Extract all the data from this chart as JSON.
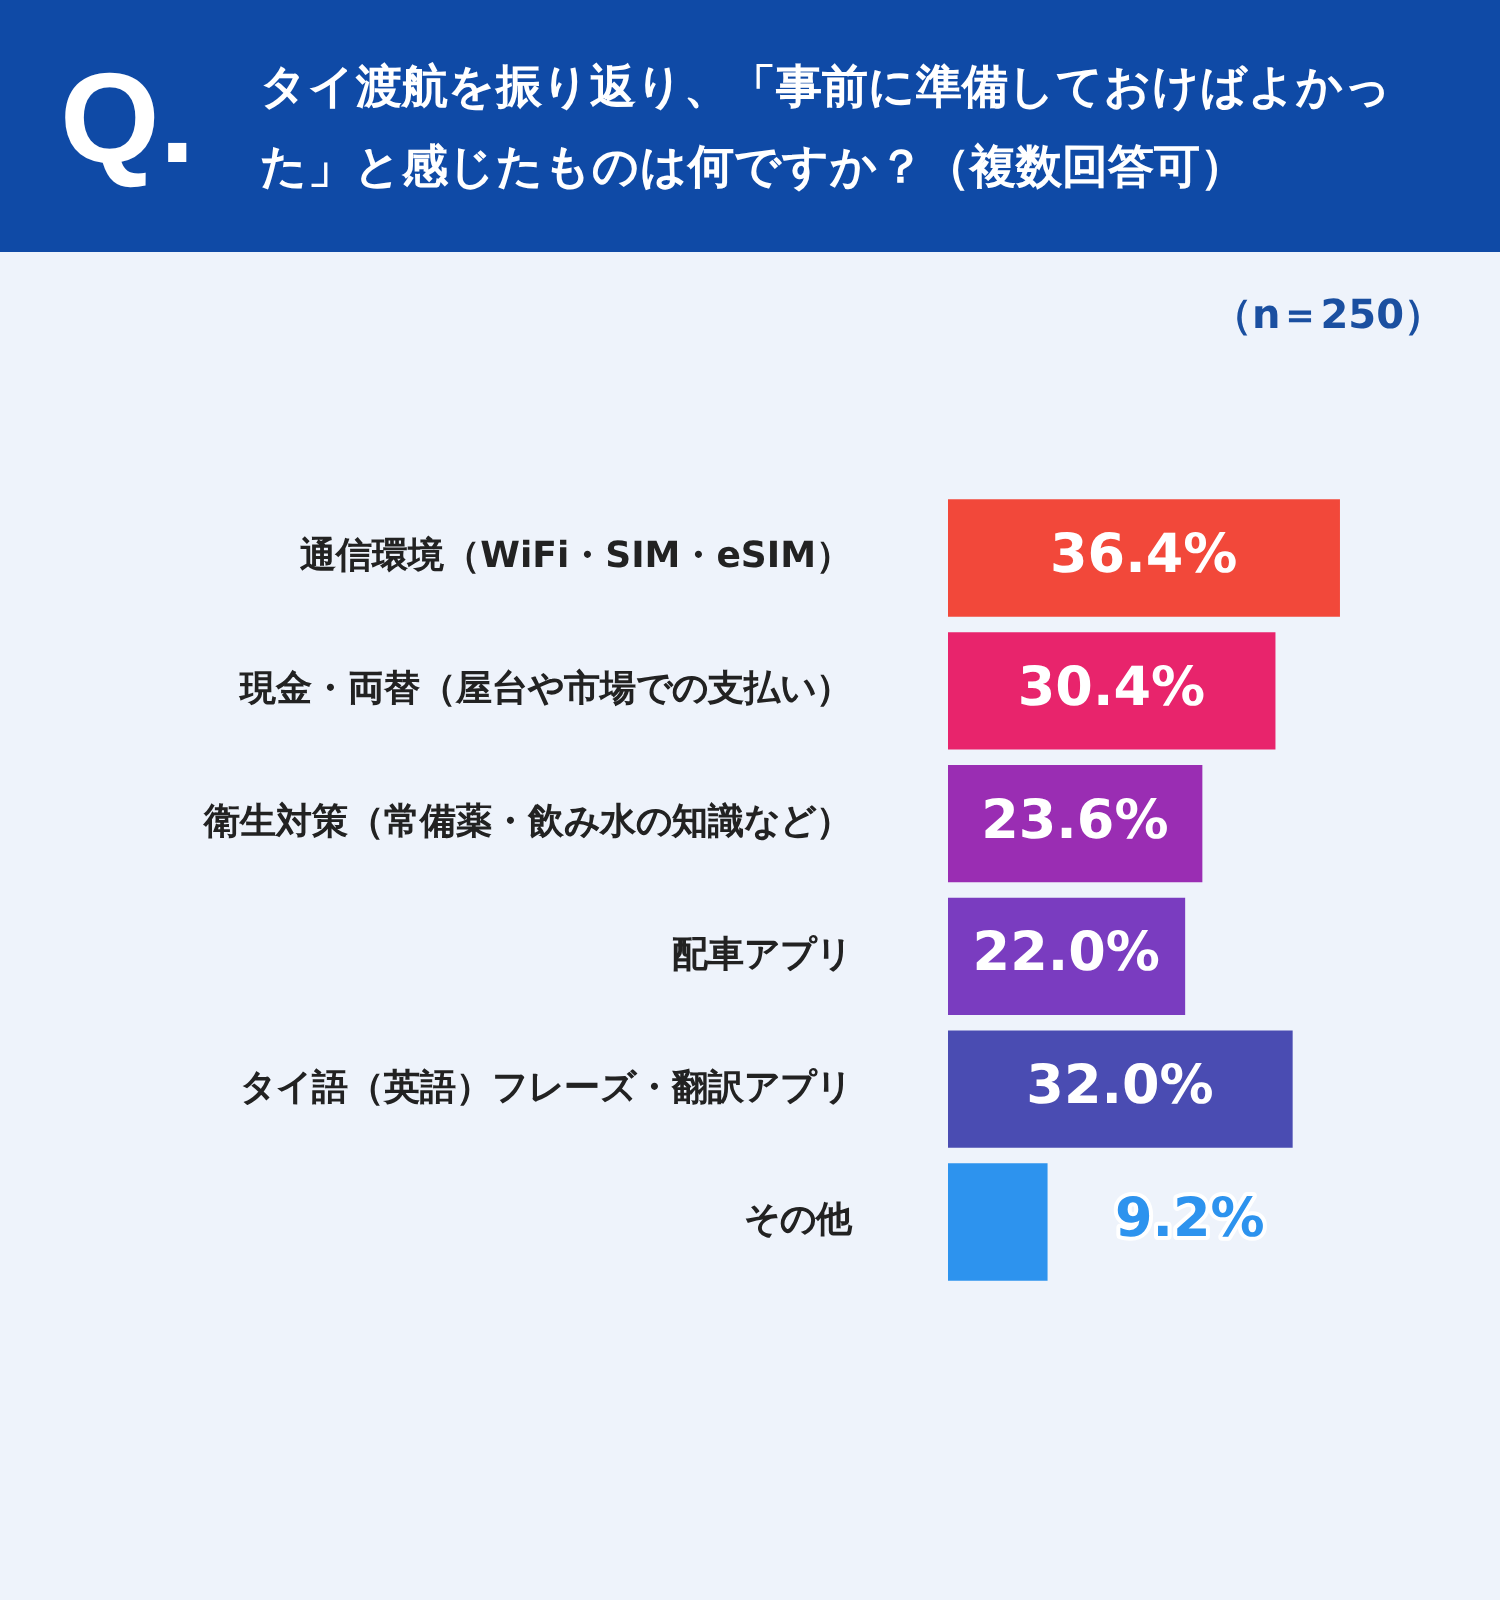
{
  "chart_data": {
    "type": "bar",
    "orientation": "horizontal",
    "title": "タイ渡航を振り返り、「事前に準備しておけばよかった」と感じたものは何ですか？（複数回答可）",
    "subtitle": "（n＝250）",
    "annotations": [
      "Q."
    ],
    "categories": [
      "通信環境（WiFi・SIM・eSIM）",
      "現金・両替（屋台や市場での支払い）",
      "衛生対策（常備薬・飲み水の知識など）",
      "配車アプリ",
      "タイ語（英語）フレーズ・翻訳アプリ",
      "その他"
    ],
    "values": [
      36.4,
      30.4,
      23.6,
      22.0,
      32.0,
      9.2
    ],
    "value_labels": [
      "36.4%",
      "30.4%",
      "23.6%",
      "22.0%",
      "32.0%",
      "9.2%"
    ],
    "colors": [
      "#f2483a",
      "#e8246c",
      "#9a2db3",
      "#7a3cc0",
      "#4a4cb2",
      "#2d93ee"
    ],
    "grid": false,
    "legend": false
  }
}
